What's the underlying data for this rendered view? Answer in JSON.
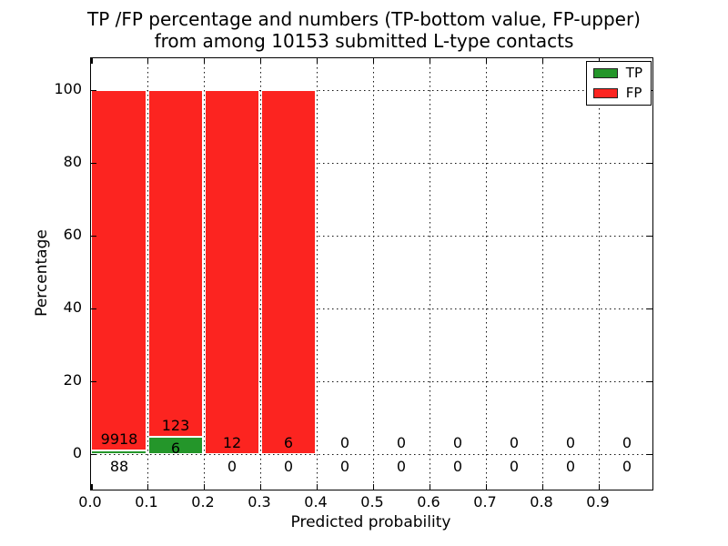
{
  "title": {
    "line1": "TP /FP percentage and numbers (TP-bottom value, FP-upper)",
    "line2": "from among 10153 submitted L-type contacts"
  },
  "axes": {
    "xlabel": "Predicted probability",
    "ylabel": "Percentage",
    "x_ticks": [
      "0.0",
      "0.1",
      "0.2",
      "0.3",
      "0.4",
      "0.5",
      "0.6",
      "0.7",
      "0.8",
      "0.9"
    ],
    "y_ticks": [
      "0",
      "20",
      "40",
      "60",
      "80",
      "100"
    ]
  },
  "legend": [
    {
      "label": "TP",
      "color": "#24962a"
    },
    {
      "label": "FP",
      "color": "#fc2420"
    }
  ],
  "colors": {
    "tp": "#24962a",
    "fp": "#fc2420",
    "grid": "#111111",
    "axis": "#000000",
    "background": "#ffffff"
  },
  "chart_data": {
    "type": "bar",
    "stacked": true,
    "title": "TP /FP percentage and numbers (TP-bottom value, FP-upper) from among 10153 submitted L-type contacts",
    "xlabel": "Predicted probability",
    "ylabel": "Percentage",
    "total_submitted": 10153,
    "bin_width": 0.1,
    "categories": [
      "0.0-0.1",
      "0.1-0.2",
      "0.2-0.3",
      "0.3-0.4",
      "0.4-0.5",
      "0.5-0.6",
      "0.6-0.7",
      "0.7-0.8",
      "0.8-0.9",
      "0.9-1.0"
    ],
    "series": [
      {
        "name": "TP",
        "counts": [
          88,
          6,
          0,
          0,
          0,
          0,
          0,
          0,
          0,
          0
        ]
      },
      {
        "name": "FP",
        "counts": [
          9918,
          123,
          12,
          6,
          0,
          0,
          0,
          0,
          0,
          0
        ]
      }
    ],
    "bar_height_pct": [
      100,
      100,
      100,
      100,
      0,
      0,
      0,
      0,
      0,
      0
    ],
    "tp_pct_of_bin": [
      0.88,
      4.65,
      0,
      0,
      0,
      0,
      0,
      0,
      0,
      0
    ],
    "xlim": [
      0.0,
      1.0
    ],
    "ylim": [
      -10,
      109
    ],
    "y_tick_values": [
      0,
      20,
      40,
      60,
      80,
      100
    ],
    "x_tick_values": [
      0.0,
      0.1,
      0.2,
      0.3,
      0.4,
      0.5,
      0.6,
      0.7,
      0.8,
      0.9
    ],
    "grid": "dotted",
    "legend_position": "upper right"
  }
}
